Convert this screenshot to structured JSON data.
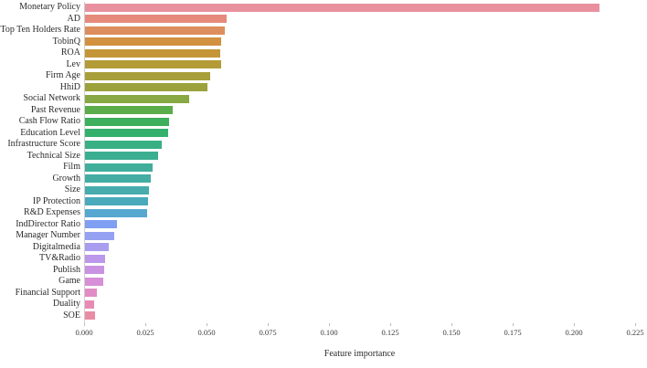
{
  "chart_data": {
    "type": "bar",
    "orientation": "horizontal",
    "title": "",
    "xlabel": "Feature importance",
    "ylabel": "",
    "xlim": [
      0,
      0.2297
    ],
    "grid": false,
    "legend": "none",
    "x_tick_labels": [
      "0.000",
      "0.025",
      "0.050",
      "0.075",
      "0.100",
      "0.125",
      "0.150",
      "0.175",
      "0.200",
      "0.225"
    ],
    "x_tick_values": [
      0.0,
      0.025,
      0.05,
      0.075,
      0.1,
      0.125,
      0.15,
      0.175,
      0.2,
      0.225
    ],
    "categories": [
      "Monetary Policy",
      "AD",
      "Top Ten Holders Rate",
      "TobinQ",
      "ROA",
      "Lev",
      "Firm Age",
      "HhiD",
      "Social Network",
      "Past Revenue",
      "Cash Flow Ratio",
      "Education Level",
      "Infrastructure Score",
      "Technical Size",
      "Film",
      "Growth",
      "Size",
      "IP Protection",
      "R&D Expenses",
      "IndDirector Ratio",
      "Manager Number",
      "Digitalmedia",
      "TV&Radio",
      "Publish",
      "Game",
      "Financial Support",
      "Duality",
      "SOE"
    ],
    "values": [
      0.21,
      0.0577,
      0.057,
      0.0556,
      0.0552,
      0.0554,
      0.0511,
      0.05,
      0.0425,
      0.0357,
      0.0343,
      0.0341,
      0.0313,
      0.03,
      0.0275,
      0.027,
      0.026,
      0.0256,
      0.0255,
      0.013,
      0.012,
      0.0095,
      0.0082,
      0.0078,
      0.0076,
      0.0047,
      0.0036,
      0.0039
    ],
    "colors": [
      "#e9909f",
      "#e68a7c",
      "#dd8e5e",
      "#d29140",
      "#c49638",
      "#b39b38",
      "#a89e3a",
      "#9ba23c",
      "#87a843",
      "#5bad4b",
      "#3daf5d",
      "#35b06c",
      "#39af84",
      "#3cae90",
      "#3fae9b",
      "#43ada4",
      "#46acae",
      "#4aaabb",
      "#56a8d1",
      "#7f9ff2",
      "#95a1f1",
      "#a99df0",
      "#bb98e9",
      "#ca93e2",
      "#d78fd7",
      "#e28cc5",
      "#e88bb3",
      "#e98da4"
    ]
  }
}
